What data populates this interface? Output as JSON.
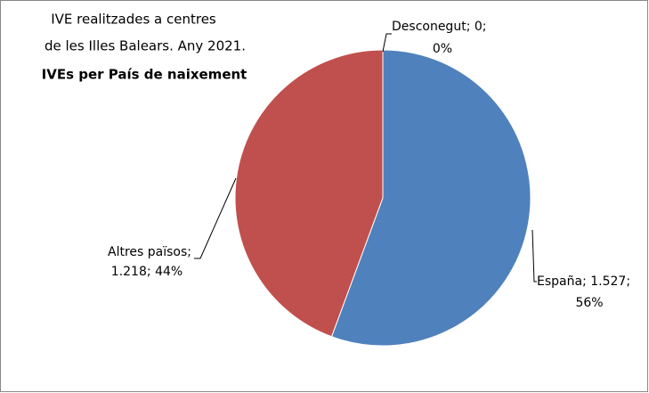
{
  "chart_data": {
    "type": "pie",
    "title": [
      "IVE realitzades  a centres",
      "de les Illes Balears. Any 2021."
    ],
    "subtitle": "IVEs per País de naixement",
    "categories": [
      "España",
      "Altres països",
      "Desconegut"
    ],
    "values": [
      1527,
      1218,
      0
    ],
    "value_labels": [
      "1.527",
      "1.218",
      "0"
    ],
    "percent_labels": [
      "56%",
      "44%",
      "0%"
    ],
    "label_separator": "; ",
    "colors": [
      "#4f81bd",
      "#c0504d",
      "#9bbb59"
    ]
  }
}
